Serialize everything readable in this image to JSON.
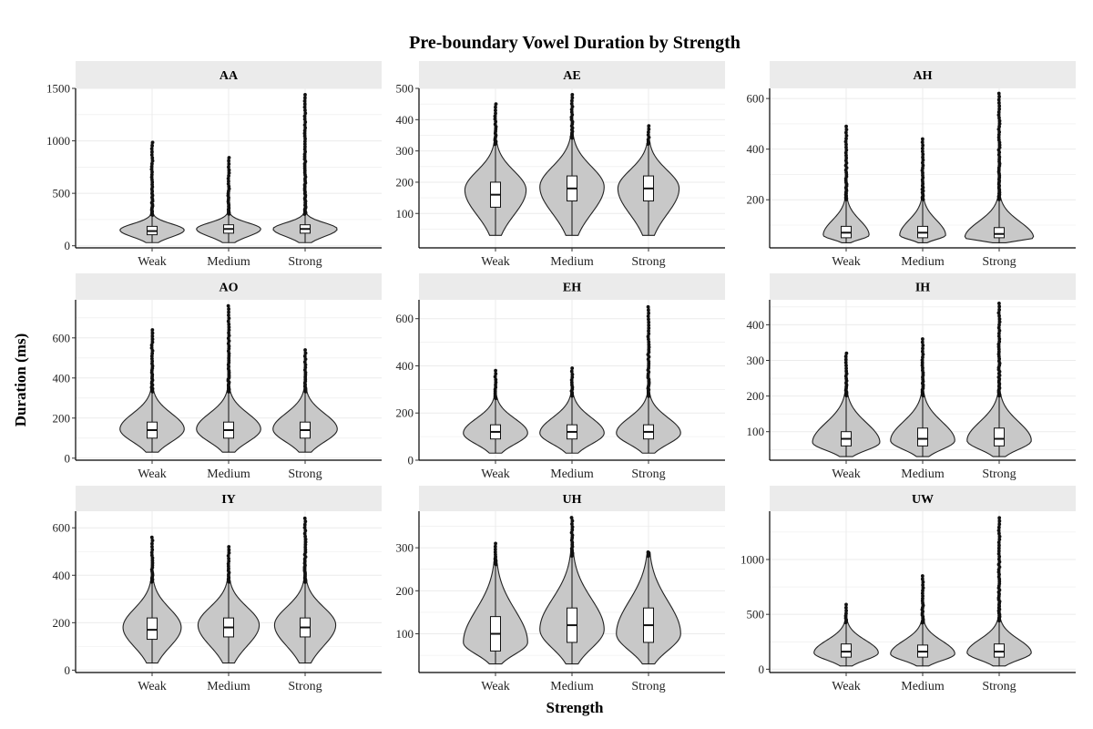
{
  "chart_data": {
    "type": "violin",
    "title": "Pre-boundary Vowel Duration by Strength",
    "xlabel": "Strength",
    "ylabel": "Duration (ms)",
    "categories": [
      "Weak",
      "Medium",
      "Strong"
    ],
    "colors": {
      "violin_fill": "#c8c8c8",
      "strip": "#ebebeb",
      "grid": "#ebebeb",
      "outline": "#222222"
    },
    "panels": [
      {
        "name": "AA",
        "ylim": [
          -20,
          1500
        ],
        "yticks": [
          0,
          500,
          1000,
          1500
        ],
        "violins": [
          {
            "category": "Weak",
            "min": 30,
            "q1": 105,
            "median": 140,
            "q3": 185,
            "whisker": 290,
            "max": 985,
            "mode": 150,
            "half_width": 0.42
          },
          {
            "category": "Medium",
            "min": 30,
            "q1": 120,
            "median": 160,
            "q3": 200,
            "whisker": 300,
            "max": 840,
            "mode": 160,
            "half_width": 0.42
          },
          {
            "category": "Strong",
            "min": 30,
            "q1": 120,
            "median": 160,
            "q3": 200,
            "whisker": 300,
            "max": 1440,
            "mode": 160,
            "half_width": 0.42
          }
        ]
      },
      {
        "name": "AE",
        "ylim": [
          -10,
          500
        ],
        "yticks": [
          100,
          200,
          300,
          400,
          500
        ],
        "violins": [
          {
            "category": "Weak",
            "min": 30,
            "q1": 120,
            "median": 160,
            "q3": 200,
            "whisker": 320,
            "max": 450,
            "mode": 175,
            "half_width": 0.4
          },
          {
            "category": "Medium",
            "min": 30,
            "q1": 140,
            "median": 180,
            "q3": 220,
            "whisker": 340,
            "max": 480,
            "mode": 185,
            "half_width": 0.42
          },
          {
            "category": "Strong",
            "min": 30,
            "q1": 140,
            "median": 180,
            "q3": 220,
            "whisker": 320,
            "max": 380,
            "mode": 180,
            "half_width": 0.4
          }
        ]
      },
      {
        "name": "AH",
        "ylim": [
          10,
          640
        ],
        "yticks": [
          200,
          400,
          600
        ],
        "violins": [
          {
            "category": "Weak",
            "min": 30,
            "q1": 50,
            "median": 70,
            "q3": 95,
            "whisker": 200,
            "max": 490,
            "mode": 60,
            "half_width": 0.3
          },
          {
            "category": "Medium",
            "min": 30,
            "q1": 50,
            "median": 70,
            "q3": 95,
            "whisker": 200,
            "max": 440,
            "mode": 60,
            "half_width": 0.3
          },
          {
            "category": "Strong",
            "min": 30,
            "q1": 50,
            "median": 65,
            "q3": 90,
            "whisker": 200,
            "max": 620,
            "mode": 50,
            "half_width": 0.45
          }
        ]
      },
      {
        "name": "AO",
        "ylim": [
          -10,
          790
        ],
        "yticks": [
          0,
          200,
          400,
          600
        ],
        "violins": [
          {
            "category": "Weak",
            "min": 30,
            "q1": 100,
            "median": 140,
            "q3": 180,
            "whisker": 330,
            "max": 640,
            "mode": 145,
            "half_width": 0.42
          },
          {
            "category": "Medium",
            "min": 30,
            "q1": 100,
            "median": 140,
            "q3": 180,
            "whisker": 330,
            "max": 760,
            "mode": 145,
            "half_width": 0.42
          },
          {
            "category": "Strong",
            "min": 30,
            "q1": 100,
            "median": 140,
            "q3": 180,
            "whisker": 330,
            "max": 540,
            "mode": 145,
            "half_width": 0.42
          }
        ]
      },
      {
        "name": "EH",
        "ylim": [
          0,
          680
        ],
        "yticks": [
          0,
          200,
          400,
          600
        ],
        "violins": [
          {
            "category": "Weak",
            "min": 30,
            "q1": 90,
            "median": 120,
            "q3": 150,
            "whisker": 260,
            "max": 380,
            "mode": 115,
            "half_width": 0.42
          },
          {
            "category": "Medium",
            "min": 30,
            "q1": 90,
            "median": 120,
            "q3": 150,
            "whisker": 270,
            "max": 390,
            "mode": 115,
            "half_width": 0.42
          },
          {
            "category": "Strong",
            "min": 30,
            "q1": 90,
            "median": 120,
            "q3": 150,
            "whisker": 270,
            "max": 650,
            "mode": 115,
            "half_width": 0.42
          }
        ]
      },
      {
        "name": "IH",
        "ylim": [
          20,
          470
        ],
        "yticks": [
          100,
          200,
          300,
          400
        ],
        "violins": [
          {
            "category": "Weak",
            "min": 30,
            "q1": 60,
            "median": 80,
            "q3": 100,
            "whisker": 200,
            "max": 320,
            "mode": 70,
            "half_width": 0.44
          },
          {
            "category": "Medium",
            "min": 30,
            "q1": 60,
            "median": 80,
            "q3": 110,
            "whisker": 200,
            "max": 360,
            "mode": 75,
            "half_width": 0.42
          },
          {
            "category": "Strong",
            "min": 30,
            "q1": 60,
            "median": 80,
            "q3": 110,
            "whisker": 200,
            "max": 460,
            "mode": 75,
            "half_width": 0.42
          }
        ]
      },
      {
        "name": "IY",
        "ylim": [
          -10,
          670
        ],
        "yticks": [
          0,
          200,
          400,
          600
        ],
        "violins": [
          {
            "category": "Weak",
            "min": 30,
            "q1": 130,
            "median": 170,
            "q3": 220,
            "whisker": 370,
            "max": 560,
            "mode": 180,
            "half_width": 0.38
          },
          {
            "category": "Medium",
            "min": 30,
            "q1": 140,
            "median": 180,
            "q3": 220,
            "whisker": 370,
            "max": 520,
            "mode": 190,
            "half_width": 0.4
          },
          {
            "category": "Strong",
            "min": 30,
            "q1": 140,
            "median": 180,
            "q3": 220,
            "whisker": 370,
            "max": 640,
            "mode": 190,
            "half_width": 0.4
          }
        ]
      },
      {
        "name": "UH",
        "ylim": [
          10,
          385
        ],
        "yticks": [
          100,
          200,
          300
        ],
        "violins": [
          {
            "category": "Weak",
            "min": 30,
            "q1": 60,
            "median": 100,
            "q3": 140,
            "whisker": 260,
            "max": 310,
            "mode": 80,
            "half_width": 0.42
          },
          {
            "category": "Medium",
            "min": 30,
            "q1": 80,
            "median": 120,
            "q3": 160,
            "whisker": 280,
            "max": 370,
            "mode": 110,
            "half_width": 0.42
          },
          {
            "category": "Strong",
            "min": 30,
            "q1": 80,
            "median": 120,
            "q3": 160,
            "whisker": 280,
            "max": 290,
            "mode": 100,
            "half_width": 0.42
          }
        ]
      },
      {
        "name": "UW",
        "ylim": [
          -30,
          1440
        ],
        "yticks": [
          0,
          500,
          1000
        ],
        "violins": [
          {
            "category": "Weak",
            "min": 30,
            "q1": 110,
            "median": 160,
            "q3": 230,
            "whisker": 420,
            "max": 590,
            "mode": 150,
            "half_width": 0.42
          },
          {
            "category": "Medium",
            "min": 30,
            "q1": 110,
            "median": 160,
            "q3": 220,
            "whisker": 420,
            "max": 850,
            "mode": 140,
            "half_width": 0.42
          },
          {
            "category": "Strong",
            "min": 30,
            "q1": 110,
            "median": 160,
            "q3": 230,
            "whisker": 440,
            "max": 1380,
            "mode": 150,
            "half_width": 0.42
          }
        ]
      }
    ]
  }
}
